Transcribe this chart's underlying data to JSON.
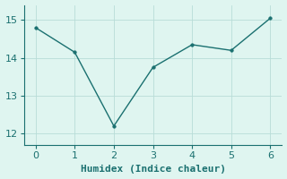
{
  "x": [
    0,
    1,
    2,
    3,
    4,
    5,
    6
  ],
  "y": [
    14.8,
    14.15,
    12.2,
    13.75,
    14.35,
    14.2,
    15.05
  ],
  "line_color": "#1a7070",
  "marker_color": "#1a7070",
  "bg_color": "#dff5f0",
  "grid_color": "#b8ddd8",
  "spine_color": "#1a7070",
  "xlabel": "Humidex (Indice chaleur)",
  "xlabel_fontsize": 8,
  "tick_fontsize": 8,
  "ylim": [
    11.7,
    15.4
  ],
  "xlim": [
    -0.3,
    6.3
  ],
  "yticks": [
    12,
    13,
    14,
    15
  ],
  "xticks": [
    0,
    1,
    2,
    3,
    4,
    5,
    6
  ],
  "figsize": [
    3.2,
    2.0
  ],
  "dpi": 100
}
